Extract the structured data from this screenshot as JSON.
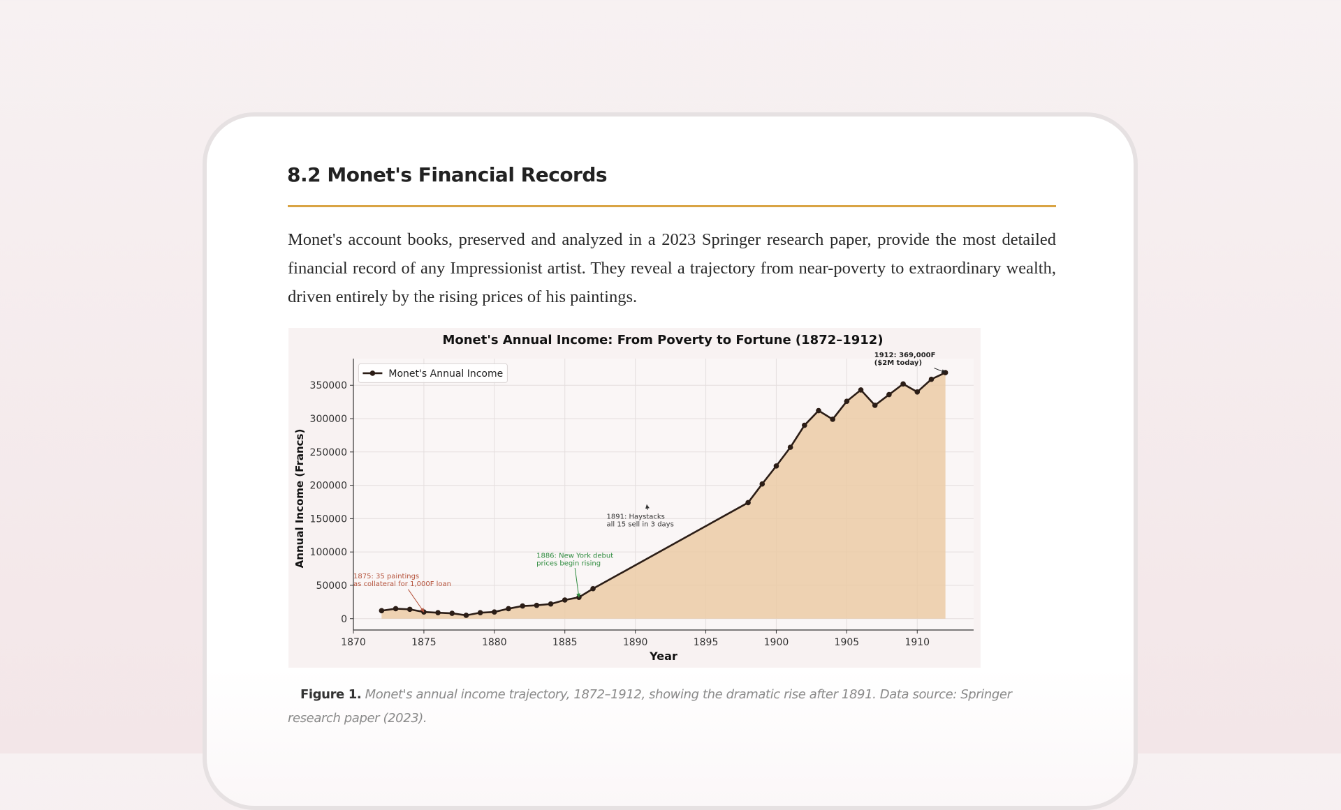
{
  "section": {
    "heading": "8.2 Monet's Financial Records",
    "paragraph": "Monet's account books, preserved and analyzed in a 2023 Springer research paper, provide the most detailed financial record of any Impressionist artist. They reveal a trajectory from near-poverty to extraordinary wealth, driven entirely by the rising prices of his paintings.",
    "caption": {
      "label": "Figure 1.",
      "text": "Monet's annual income trajectory, 1872–1912, showing the dramatic rise after 1891. Data source: Springer research paper (2023)."
    }
  },
  "chart_data": {
    "type": "line",
    "title": "Monet's Annual Income: From Poverty to Fortune (1872–1912)",
    "x_label": "Year",
    "y_label": "Annual Income (Francs)",
    "x": [
      1872,
      1873,
      1874,
      1875,
      1876,
      1877,
      1878,
      1879,
      1880,
      1881,
      1882,
      1883,
      1884,
      1885,
      1886,
      1887,
      1898,
      1899,
      1900,
      1901,
      1902,
      1903,
      1904,
      1905,
      1906,
      1907,
      1908,
      1909,
      1910,
      1911,
      1912
    ],
    "series": [
      {
        "name": "Monet's Annual Income",
        "color": "#2b1d16",
        "fill": "#ebcba6",
        "values": [
          12000,
          15000,
          14000,
          10000,
          9000,
          8000,
          5000,
          9000,
          10000,
          15000,
          19000,
          20000,
          22000,
          28000,
          32000,
          45000,
          174000,
          202000,
          229000,
          257000,
          290000,
          312000,
          299000,
          326000,
          343000,
          320000,
          336000,
          352000,
          340000,
          359000,
          369000
        ]
      }
    ],
    "xlim": [
      1870,
      1914
    ],
    "ylim": [
      -17000,
      390000
    ],
    "xticks": [
      1870,
      1875,
      1880,
      1885,
      1890,
      1895,
      1900,
      1905,
      1910
    ],
    "yticks": [
      0,
      50000,
      100000,
      150000,
      200000,
      250000,
      300000,
      350000
    ],
    "grid": true,
    "legend": "upper left",
    "annotations": [
      {
        "lines": [
          "1875: 35 paintings",
          "as collateral for 1,000F loan"
        ],
        "color": "#b5533c"
      },
      {
        "lines": [
          "1886: New York debut",
          "prices begin rising"
        ],
        "color": "#2e8b3e"
      },
      {
        "lines": [
          "1891: Haystacks",
          "all 15 sell in 3 days"
        ],
        "color": "#333333"
      },
      {
        "lines": [
          "1912: 369,000F",
          "($2M today)"
        ],
        "color": "#222222"
      }
    ]
  }
}
